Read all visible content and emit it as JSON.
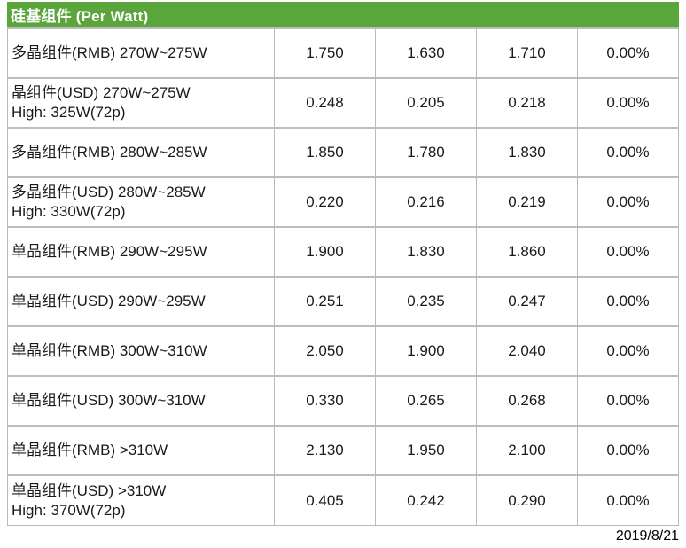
{
  "header": {
    "title": "硅基组件 (Per Watt)"
  },
  "footer": {
    "date": "2019/8/21"
  },
  "colors": {
    "header_bg": "#5aa53c",
    "header_text": "#ffffff",
    "grid_border": "#bdbdbd",
    "body_text": "#1a1a1a"
  },
  "chart_data": {
    "type": "table",
    "title": "硅基组件 (Per Watt)",
    "footer_date": "2019/8/21",
    "rows": [
      {
        "label": "多晶组件(RMB) 270W~275W",
        "sublabel": "",
        "values": [
          "1.750",
          "1.630",
          "1.710",
          "0.00%"
        ]
      },
      {
        "label": "晶组件(USD) 270W~275W",
        "sublabel": "High: 325W(72p)",
        "values": [
          "0.248",
          "0.205",
          "0.218",
          "0.00%"
        ]
      },
      {
        "label": "多晶组件(RMB) 280W~285W",
        "sublabel": "",
        "values": [
          "1.850",
          "1.780",
          "1.830",
          "0.00%"
        ]
      },
      {
        "label": "多晶组件(USD) 280W~285W",
        "sublabel": "High: 330W(72p)",
        "values": [
          "0.220",
          "0.216",
          "0.219",
          "0.00%"
        ]
      },
      {
        "label": "单晶组件(RMB) 290W~295W",
        "sublabel": "",
        "values": [
          "1.900",
          "1.830",
          "1.860",
          "0.00%"
        ]
      },
      {
        "label": "单晶组件(USD) 290W~295W",
        "sublabel": "",
        "values": [
          "0.251",
          "0.235",
          "0.247",
          "0.00%"
        ]
      },
      {
        "label": "单晶组件(RMB) 300W~310W",
        "sublabel": "",
        "values": [
          "2.050",
          "1.900",
          "2.040",
          "0.00%"
        ]
      },
      {
        "label": "单晶组件(USD) 300W~310W",
        "sublabel": "",
        "values": [
          "0.330",
          "0.265",
          "0.268",
          "0.00%"
        ]
      },
      {
        "label": "单晶组件(RMB) >310W",
        "sublabel": "",
        "values": [
          "2.130",
          "1.950",
          "2.100",
          "0.00%"
        ]
      },
      {
        "label": "单晶组件(USD) >310W",
        "sublabel": "High: 370W(72p)",
        "values": [
          "0.405",
          "0.242",
          "0.290",
          "0.00%"
        ]
      }
    ]
  }
}
